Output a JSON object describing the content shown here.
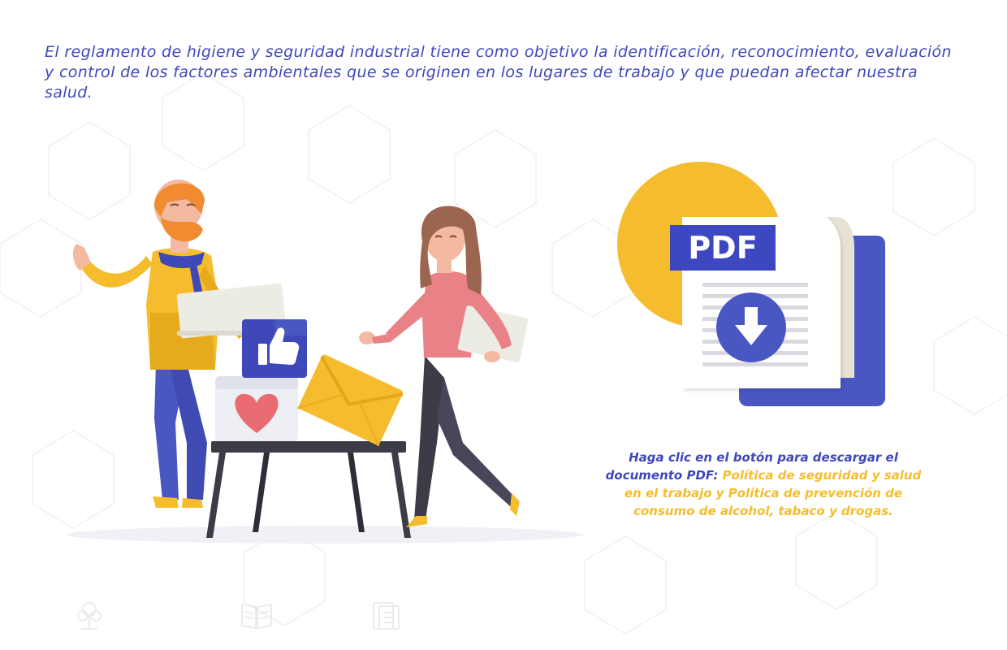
{
  "intro": {
    "text": "El reglamento de higiene y seguridad industrial tiene como objetivo la identificación, reconocimiento, evaluación y control de los factores ambientales que se originen en los lugares de trabajo y que puedan afectar nuestra salud."
  },
  "download": {
    "badge_text": "PDF",
    "caption_lead": "Haga clic en el botón para descargar el documento PDF: ",
    "caption_docs": "Política de seguridad y salud en el trabajo  y Política de prevención de consumo de alcohol, tabaco y drogas."
  },
  "footer_icons": [
    "tree-icon",
    "book-icon",
    "document-icon"
  ],
  "colors": {
    "text_blue": "#3f48b8",
    "accent_yellow": "#f5bd2d",
    "pdf_blue": "#4a57c2",
    "badge_blue": "#3d48c0",
    "heart_red": "#e86c72",
    "sweater_pink": "#e98287"
  }
}
